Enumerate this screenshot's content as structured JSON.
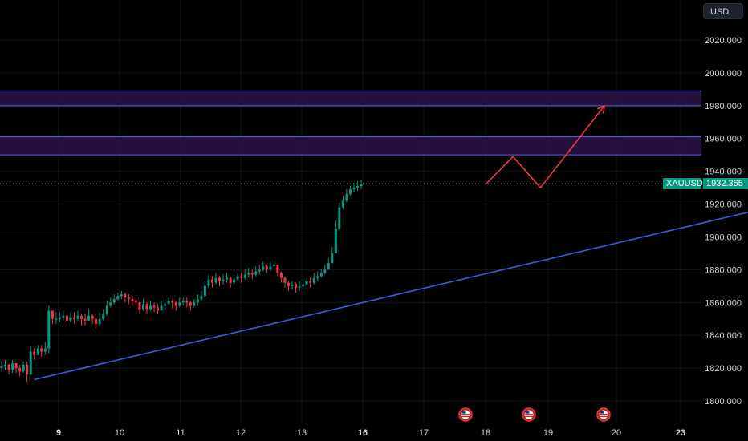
{
  "currency_label": "USD",
  "symbol": "XAUUSD",
  "last_price": "1932.365",
  "colors": {
    "up": "#089981",
    "down": "#f23645",
    "zone_fill": "#2a1242",
    "zone_line": "#5b5ff0",
    "trendline": "#3a5ce0",
    "projection": "#f23645",
    "grid": "#15171c",
    "background": "#000000"
  },
  "chart_data": {
    "type": "candlestick",
    "y_ticks": [
      "2020.000",
      "2000.000",
      "1980.000",
      "1960.000",
      "1940.000",
      "1920.000",
      "1900.000",
      "1880.000",
      "1860.000",
      "1840.000",
      "1820.000",
      "1800.000"
    ],
    "x_ticks": [
      {
        "label": "9",
        "bold": true
      },
      {
        "label": "10",
        "bold": false
      },
      {
        "label": "11",
        "bold": false
      },
      {
        "label": "12",
        "bold": false
      },
      {
        "label": "13",
        "bold": false
      },
      {
        "label": "16",
        "bold": true
      },
      {
        "label": "17",
        "bold": false
      },
      {
        "label": "18",
        "bold": false
      },
      {
        "label": "19",
        "bold": false
      },
      {
        "label": "20",
        "bold": false
      },
      {
        "label": "23",
        "bold": true
      }
    ],
    "ylim": [
      1795,
      2030
    ],
    "zones": [
      {
        "low": 1980,
        "high": 1989
      },
      {
        "low": 1950,
        "high": 1961
      }
    ],
    "trendline": {
      "start": {
        "x": 8.6,
        "y": 1813
      },
      "end": {
        "x": 23.4,
        "y": 1942
      }
    },
    "projection": [
      {
        "x": 16.0,
        "y": 1932
      },
      {
        "x": 16.45,
        "y": 1949
      },
      {
        "x": 16.9,
        "y": 1930
      },
      {
        "x": 17.95,
        "y": 1980
      }
    ],
    "closes": [
      1821,
      1822,
      1819,
      1823,
      1820,
      1818,
      1822,
      1816,
      1830,
      1828,
      1832,
      1830,
      1832,
      1855,
      1850,
      1850,
      1851,
      1852,
      1849,
      1851,
      1850,
      1852,
      1850,
      1849,
      1852,
      1850,
      1847,
      1850,
      1853,
      1858,
      1860,
      1862,
      1864,
      1865,
      1863,
      1862,
      1861,
      1860,
      1856,
      1859,
      1856,
      1858,
      1857,
      1855,
      1858,
      1859,
      1861,
      1860,
      1858,
      1860,
      1861,
      1860,
      1858,
      1860,
      1862,
      1864,
      1870,
      1874,
      1872,
      1875,
      1873,
      1874,
      1875,
      1872,
      1874,
      1876,
      1875,
      1877,
      1878,
      1877,
      1879,
      1880,
      1882,
      1880,
      1882,
      1883,
      1878,
      1875,
      1872,
      1870,
      1871,
      1869,
      1870,
      1871,
      1873,
      1872,
      1875,
      1876,
      1878,
      1880,
      1884,
      1890,
      1905,
      1918,
      1922,
      1926,
      1929,
      1930,
      1931,
      1932
    ],
    "highs": [
      1824,
      1825,
      1823,
      1825,
      1823,
      1822,
      1824,
      1824,
      1833,
      1832,
      1834,
      1834,
      1836,
      1858,
      1854,
      1854,
      1854,
      1855,
      1853,
      1854,
      1854,
      1855,
      1853,
      1853,
      1856,
      1853,
      1851,
      1854,
      1856,
      1861,
      1863,
      1865,
      1866,
      1867,
      1866,
      1865,
      1864,
      1863,
      1860,
      1862,
      1860,
      1861,
      1860,
      1859,
      1861,
      1862,
      1863,
      1862,
      1861,
      1863,
      1863,
      1863,
      1861,
      1862,
      1865,
      1867,
      1873,
      1877,
      1876,
      1878,
      1876,
      1877,
      1878,
      1876,
      1877,
      1878,
      1878,
      1880,
      1881,
      1880,
      1882,
      1883,
      1885,
      1883,
      1885,
      1886,
      1883,
      1879,
      1876,
      1873,
      1873,
      1872,
      1873,
      1874,
      1875,
      1875,
      1878,
      1879,
      1880,
      1883,
      1887,
      1894,
      1910,
      1921,
      1925,
      1929,
      1931,
      1933,
      1934,
      1935
    ],
    "lows": [
      1818,
      1819,
      1816,
      1817,
      1817,
      1815,
      1817,
      1811,
      1824,
      1825,
      1828,
      1827,
      1828,
      1829,
      1847,
      1847,
      1848,
      1849,
      1846,
      1848,
      1847,
      1849,
      1846,
      1846,
      1849,
      1847,
      1844,
      1846,
      1849,
      1852,
      1857,
      1859,
      1861,
      1862,
      1860,
      1859,
      1858,
      1856,
      1853,
      1855,
      1853,
      1855,
      1854,
      1853,
      1855,
      1856,
      1858,
      1856,
      1855,
      1857,
      1858,
      1857,
      1855,
      1857,
      1858,
      1861,
      1863,
      1869,
      1869,
      1871,
      1870,
      1871,
      1872,
      1869,
      1871,
      1873,
      1872,
      1874,
      1875,
      1874,
      1876,
      1877,
      1879,
      1878,
      1879,
      1881,
      1876,
      1872,
      1869,
      1867,
      1868,
      1866,
      1867,
      1868,
      1870,
      1869,
      1871,
      1873,
      1875,
      1877,
      1880,
      1884,
      1890,
      1904,
      1917,
      1921,
      1925,
      1927,
      1928,
      1929
    ]
  }
}
